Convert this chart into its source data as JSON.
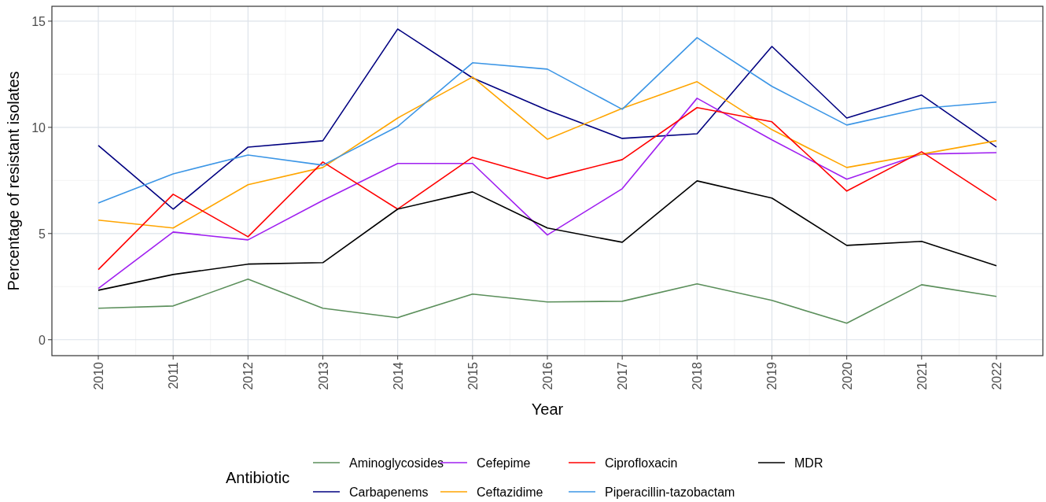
{
  "chart_data": {
    "type": "line",
    "xlabel": "Year",
    "ylabel": "Percentage of resistant isolates",
    "legend_title": "Antibiotic",
    "legend": "bottom",
    "grid": true,
    "x": [
      2010,
      2011,
      2012,
      2013,
      2014,
      2015,
      2016,
      2017,
      2018,
      2019,
      2020,
      2021,
      2022
    ],
    "xlim": [
      2009.38,
      2022.62
    ],
    "xticks": [
      2010,
      2011,
      2012,
      2013,
      2014,
      2015,
      2016,
      2017,
      2018,
      2019,
      2020,
      2021,
      2022
    ],
    "ylim": [
      -0.75,
      15.7
    ],
    "yticks": [
      0,
      5,
      10,
      15
    ],
    "series": [
      {
        "name": "Aminoglycosides",
        "color": "#5b8f5b",
        "values": [
          1.48,
          1.59,
          2.85,
          1.48,
          1.04,
          2.15,
          1.78,
          1.81,
          2.63,
          1.85,
          0.78,
          2.59,
          2.04
        ]
      },
      {
        "name": "Carbapenems",
        "color": "#000080",
        "values": [
          9.15,
          6.15,
          9.07,
          9.37,
          14.63,
          12.33,
          10.81,
          9.48,
          9.7,
          13.81,
          10.44,
          11.52,
          9.07
        ]
      },
      {
        "name": "Cefepime",
        "color": "#a020f0",
        "values": [
          2.41,
          5.07,
          4.7,
          6.56,
          8.3,
          8.3,
          4.93,
          7.11,
          11.37,
          9.41,
          7.56,
          8.74,
          8.81
        ]
      },
      {
        "name": "Ceftazidime",
        "color": "#ffa500",
        "values": [
          5.63,
          5.26,
          7.3,
          8.11,
          10.44,
          12.37,
          9.44,
          10.89,
          12.15,
          9.89,
          8.11,
          8.74,
          9.37
        ]
      },
      {
        "name": "Ciprofloxacin",
        "color": "#ff0000",
        "values": [
          3.3,
          6.85,
          4.85,
          8.37,
          6.15,
          8.59,
          7.59,
          8.48,
          10.93,
          10.26,
          7.0,
          8.85,
          6.56
        ]
      },
      {
        "name": "Piperacillin-tazobactam",
        "color": "#3c96e6",
        "values": [
          6.44,
          7.81,
          8.7,
          8.22,
          10.04,
          13.04,
          12.74,
          10.85,
          14.22,
          11.93,
          10.11,
          10.89,
          11.19
        ]
      },
      {
        "name": "MDR",
        "color": "#000000",
        "values": [
          2.33,
          3.07,
          3.56,
          3.63,
          6.15,
          6.96,
          5.26,
          4.59,
          7.48,
          6.67,
          4.44,
          4.63,
          3.48
        ]
      }
    ]
  }
}
